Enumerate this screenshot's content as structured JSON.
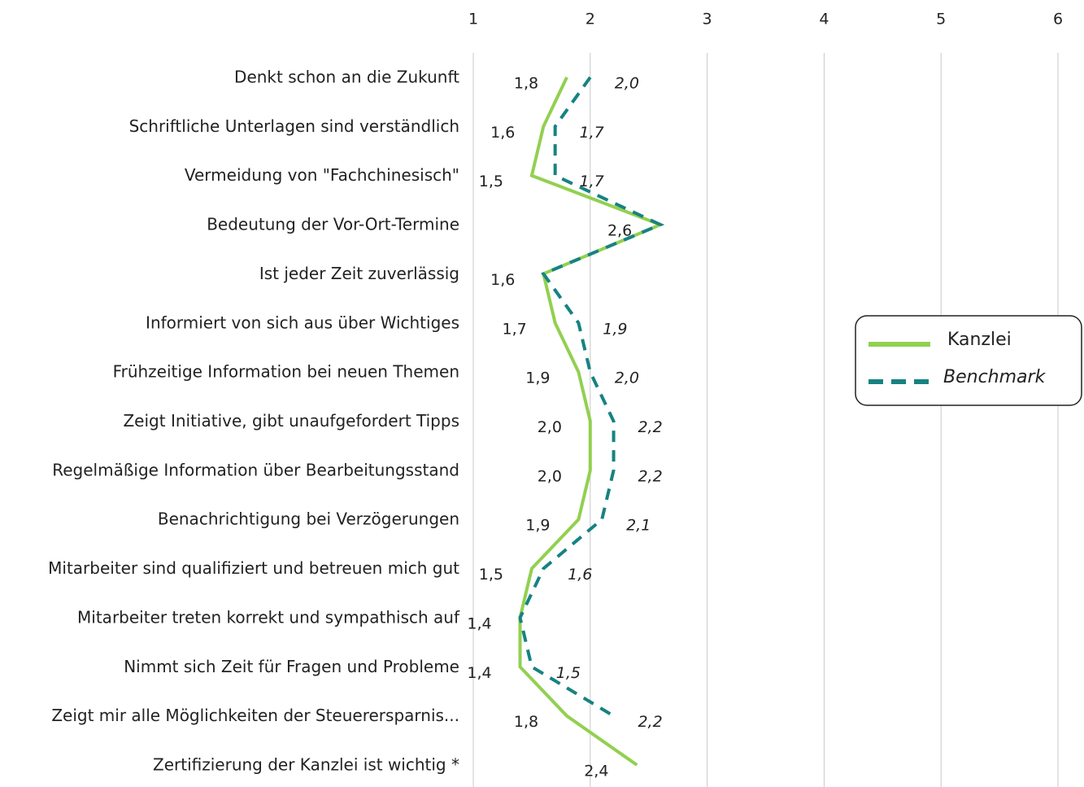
{
  "chart_data": {
    "type": "line",
    "orientation": "horizontal",
    "categories": [
      "Denkt schon an die Zukunft",
      "Schriftliche Unterlagen sind verständlich",
      "Vermeidung von \"Fachchinesisch\"",
      "Bedeutung der Vor-Ort-Termine",
      "Ist jeder Zeit zuverlässig",
      "Informiert von sich aus über Wichtiges",
      "Frühzeitige Information bei neuen Themen",
      "Zeigt Initiative, gibt unaufgefordert Tipps",
      "Regelmäßige Information über Bearbeitungsstand",
      "Benachrichtigung bei Verzögerungen",
      "Mitarbeiter sind qualifiziert und betreuen mich gut",
      "Mitarbeiter treten korrekt und sympathisch auf",
      "Nimmt sich Zeit für Fragen und Probleme",
      "Zeigt mir alle Möglichkeiten der Steuerersparnis...",
      "Zertifizierung der Kanzlei ist wichtig *"
    ],
    "series": [
      {
        "name": "Kanzlei",
        "color": "#92d050",
        "style": "solid",
        "values": [
          1.8,
          1.6,
          1.5,
          2.6,
          1.6,
          1.7,
          1.9,
          2.0,
          2.0,
          1.9,
          1.5,
          1.4,
          1.4,
          1.8,
          2.4
        ],
        "value_labels": [
          "1,8",
          "1,6",
          "1,5",
          "2,6",
          "1,6",
          "1,7",
          "1,9",
          "2,0",
          "2,0",
          "1,9",
          "1,5",
          "1,4",
          "1,4",
          "1,8",
          "2,4"
        ]
      },
      {
        "name": "Benchmark",
        "color": "#178282",
        "style": "dashed",
        "values": [
          2.0,
          1.7,
          1.7,
          2.6,
          1.6,
          1.9,
          2.0,
          2.2,
          2.2,
          2.1,
          1.6,
          1.4,
          1.5,
          2.2,
          null
        ],
        "value_labels": [
          "2,0",
          "1,7",
          "1,7",
          null,
          null,
          "1,9",
          "2,0",
          "2,2",
          "2,2",
          "2,1",
          "1,6",
          null,
          "1,5",
          "2,2",
          null
        ]
      }
    ],
    "xlim": [
      1,
      6
    ],
    "xticks": [
      1,
      2,
      3,
      4,
      5,
      6
    ],
    "grid": true,
    "legend": "right"
  }
}
